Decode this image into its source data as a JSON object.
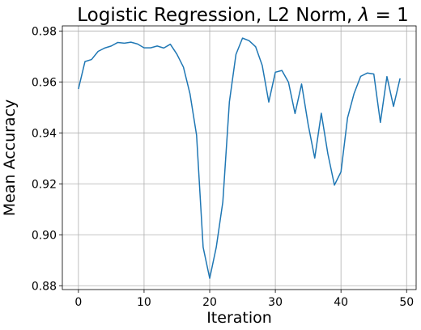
{
  "chart_data": {
    "type": "line",
    "title": "Logistic Regression, L2 Norm, λ = 1",
    "title_parts": {
      "text": "Logistic Regression, L2 Norm, ",
      "symbol": "λ",
      "eq": " = 1"
    },
    "xlabel": "Iteration",
    "ylabel": "Mean Accuracy",
    "xlim": [
      -2.45,
      51.45
    ],
    "ylim": [
      0.8785,
      0.982
    ],
    "xticks": [
      0,
      10,
      20,
      30,
      40,
      50
    ],
    "xtick_labels": [
      "0",
      "10",
      "20",
      "30",
      "40",
      "50"
    ],
    "yticks": [
      0.88,
      0.9,
      0.92,
      0.94,
      0.96,
      0.98
    ],
    "ytick_labels": [
      "0.88",
      "0.90",
      "0.92",
      "0.94",
      "0.96",
      "0.98"
    ],
    "grid": true,
    "series": [
      {
        "color": "#1f77b4",
        "x": [
          0,
          1,
          2,
          3,
          4,
          5,
          6,
          7,
          8,
          9,
          10,
          11,
          12,
          13,
          14,
          15,
          16,
          17,
          18,
          19,
          20,
          21,
          22,
          23,
          24,
          25,
          26,
          27,
          28,
          29,
          30,
          31,
          32,
          33,
          34,
          35,
          36,
          37,
          38,
          39,
          40,
          41,
          42,
          43,
          44,
          45,
          46,
          47,
          48,
          49
        ],
        "y": [
          0.9572,
          0.968,
          0.9688,
          0.972,
          0.9733,
          0.9741,
          0.9755,
          0.9752,
          0.9756,
          0.9749,
          0.9734,
          0.9734,
          0.9741,
          0.9733,
          0.9748,
          0.9709,
          0.9658,
          0.9553,
          0.9391,
          0.8951,
          0.8829,
          0.8951,
          0.9129,
          0.9522,
          0.9708,
          0.9772,
          0.9762,
          0.9738,
          0.9665,
          0.9521,
          0.9638,
          0.9645,
          0.9599,
          0.9476,
          0.9592,
          0.9433,
          0.9301,
          0.9477,
          0.9318,
          0.9195,
          0.9247,
          0.9459,
          0.9555,
          0.9622,
          0.9635,
          0.9631,
          0.9441,
          0.9621,
          0.9504,
          0.9614
        ]
      }
    ]
  }
}
